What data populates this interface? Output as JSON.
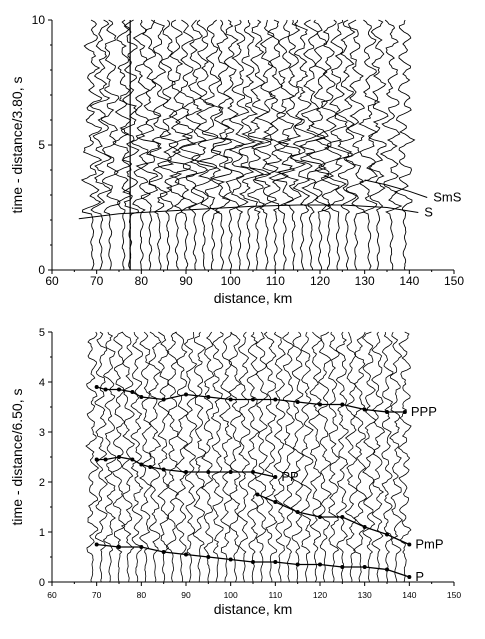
{
  "chart_data": [
    {
      "type": "line",
      "panel": "upper",
      "xlabel": "distance, km",
      "ylabel": "time - distance/3.80, s",
      "xlim": [
        60,
        150
      ],
      "ylim": [
        0,
        10
      ],
      "xticks": [
        60,
        70,
        80,
        90,
        100,
        110,
        120,
        130,
        140,
        150
      ],
      "yticks": [
        0,
        5,
        10
      ],
      "description_of_traces": "seismic record section, vertical wiggle traces at station distances",
      "trace_distances": [
        69,
        71,
        73,
        76,
        77.5,
        80,
        82,
        84,
        86,
        88,
        90,
        92,
        94,
        96,
        98,
        100,
        102,
        104,
        106,
        108,
        110,
        112,
        114,
        116,
        118,
        120,
        122,
        124,
        126,
        128,
        131,
        133,
        136,
        139
      ],
      "vertical_marker_x": 77.5,
      "phases": [
        {
          "name": "SmS",
          "x": [
            130,
            135,
            140,
            144
          ],
          "y": [
            3.6,
            3.4,
            3.15,
            2.9
          ]
        },
        {
          "name": "S",
          "x": [
            66,
            75,
            85,
            95,
            105,
            115,
            125,
            135,
            142
          ],
          "y": [
            2.05,
            2.25,
            2.35,
            2.45,
            2.55,
            2.6,
            2.6,
            2.5,
            2.3
          ]
        }
      ]
    },
    {
      "type": "line",
      "panel": "lower",
      "xlabel": "distance, km",
      "ylabel": "time - distance/6.50, s",
      "xlim": [
        60,
        150
      ],
      "ylim": [
        0,
        5
      ],
      "xticks": [
        60,
        70,
        80,
        90,
        100,
        110,
        120,
        130,
        140,
        150
      ],
      "yticks": [
        0,
        1,
        2,
        3,
        4,
        5
      ],
      "trace_distances": [
        69,
        71,
        73,
        75,
        77,
        79,
        81,
        83,
        85,
        87,
        89,
        91,
        93,
        95,
        97,
        99,
        101,
        103,
        105,
        107,
        109,
        111,
        113,
        115,
        117,
        119,
        121,
        123,
        125,
        127,
        129,
        131,
        133,
        135,
        137,
        139
      ],
      "phases": [
        {
          "name": "PPP",
          "x": [
            70,
            72,
            75,
            78,
            80,
            85,
            90,
            95,
            100,
            105,
            110,
            115,
            120,
            125,
            130,
            135,
            139
          ],
          "y": [
            3.9,
            3.85,
            3.85,
            3.8,
            3.7,
            3.65,
            3.75,
            3.7,
            3.65,
            3.65,
            3.65,
            3.6,
            3.55,
            3.55,
            3.45,
            3.4,
            3.4
          ]
        },
        {
          "name": "PP",
          "x": [
            70,
            72,
            75,
            78,
            80,
            82,
            85,
            90,
            95,
            100,
            105,
            110
          ],
          "y": [
            2.45,
            2.45,
            2.5,
            2.45,
            2.35,
            2.3,
            2.25,
            2.2,
            2.2,
            2.2,
            2.2,
            2.1
          ]
        },
        {
          "name": "PmP",
          "x": [
            106,
            110,
            115,
            120,
            125,
            130,
            135,
            140
          ],
          "y": [
            1.75,
            1.6,
            1.4,
            1.3,
            1.3,
            1.1,
            0.95,
            0.75
          ]
        },
        {
          "name": "P",
          "x": [
            70,
            75,
            80,
            85,
            90,
            95,
            100,
            105,
            110,
            115,
            120,
            125,
            130,
            135,
            140
          ],
          "y": [
            0.75,
            0.7,
            0.7,
            0.6,
            0.55,
            0.5,
            0.45,
            0.4,
            0.4,
            0.35,
            0.35,
            0.3,
            0.3,
            0.25,
            0.1
          ]
        }
      ]
    }
  ]
}
